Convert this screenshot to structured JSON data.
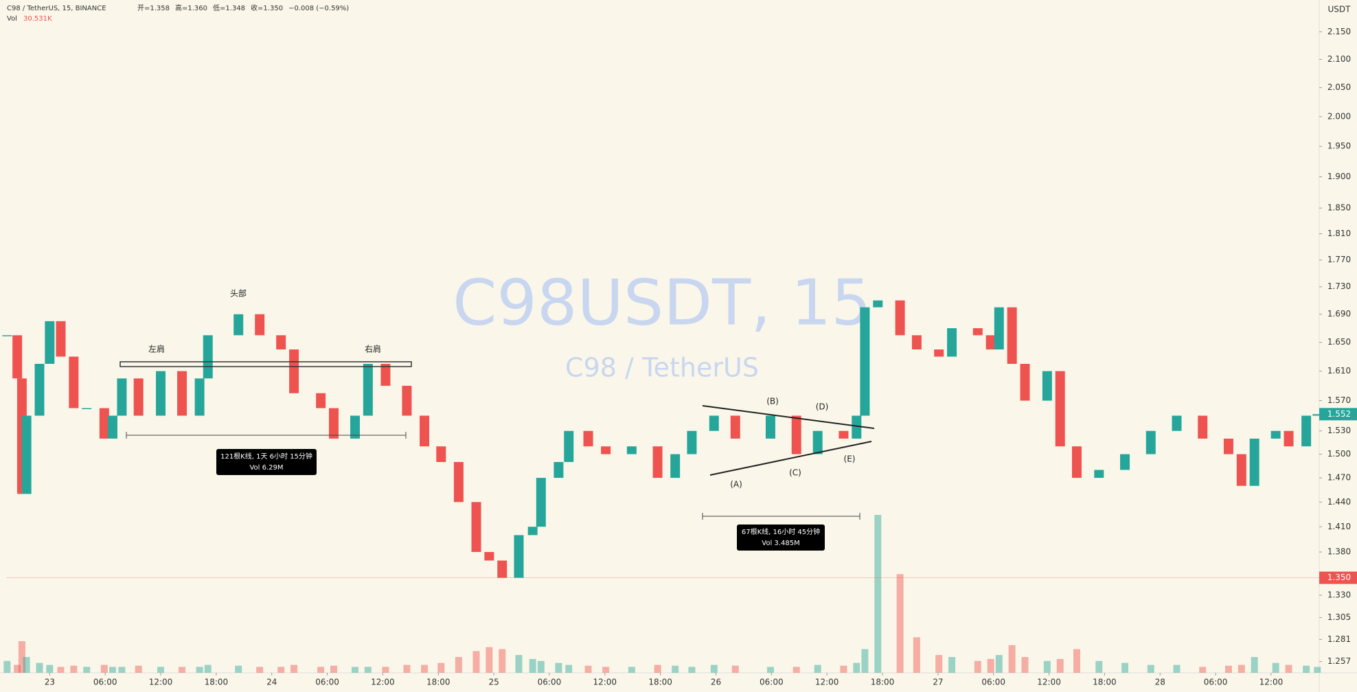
{
  "chart_data": {
    "type": "candlestick",
    "header": "C98 / TetherUS, 15, BINANCE",
    "ohlc_legend": [
      "开=1.358",
      "高=1.360",
      "低=1.348",
      "收=1.350",
      "−0.008 (−0.59%)"
    ],
    "volume_label": "Vol",
    "volume_value": "30.531K",
    "watermark": "C98USDT, 15",
    "watermark_subtitle": "C98 / TetherUS",
    "y_unit": "USDT",
    "log_scale": true,
    "grid": false,
    "up_color": "#26a69a",
    "down_color": "#ef5350",
    "xlim": [
      -4.7,
      137.2
    ],
    "xticks": [
      {
        "value": 0,
        "label": "23"
      },
      {
        "value": 6,
        "label": "06:00"
      },
      {
        "value": 12,
        "label": "12:00"
      },
      {
        "value": 18,
        "label": "18:00"
      },
      24,
      {
        "value": 30,
        "label": "06:00"
      },
      {
        "value": 36,
        "label": "12:00"
      },
      {
        "value": 42,
        "label": "18:00"
      },
      {
        "value": 48,
        "label": "25"
      },
      {
        "value": 54,
        "label": "06:00"
      },
      {
        "value": 60,
        "label": "12:00"
      },
      {
        "value": 66,
        "label": "18:00"
      },
      {
        "value": 72,
        "label": "26"
      },
      {
        "value": 78,
        "label": "06:00"
      },
      {
        "value": 84,
        "label": "12:00"
      },
      {
        "value": 90,
        "label": "18:00"
      },
      {
        "value": 96,
        "label": "27"
      },
      {
        "value": 102,
        "label": "06:00"
      },
      {
        "value": 108,
        "label": "12:00"
      },
      {
        "value": 114,
        "label": "18:00"
      },
      {
        "value": 120,
        "label": "28"
      },
      {
        "value": 126,
        "label": "06:00"
      },
      {
        "value": 132,
        "label": "12:00"
      }
    ],
    "ylim": [
      1.245,
      2.209
    ],
    "yticks": [
      {
        "value": 2.15,
        "label": "2.150"
      },
      {
        "value": 2.1,
        "label": "2.100"
      },
      {
        "value": 2.05,
        "label": "2.050"
      },
      {
        "value": 2.0,
        "label": "2.000"
      },
      {
        "value": 1.95,
        "label": "1.950"
      },
      {
        "value": 1.9,
        "label": "1.900"
      },
      {
        "value": 1.85,
        "label": "1.850"
      },
      {
        "value": 1.81,
        "label": "1.810"
      },
      {
        "value": 1.77,
        "label": "1.770"
      },
      {
        "value": 1.73,
        "label": "1.730"
      },
      {
        "value": 1.69,
        "label": "1.690"
      },
      {
        "value": 1.65,
        "label": "1.650"
      },
      {
        "value": 1.61,
        "label": "1.610"
      },
      {
        "value": 1.57,
        "label": "1.570"
      },
      {
        "value": 1.53,
        "label": "1.530"
      },
      {
        "value": 1.5,
        "label": "1.500"
      },
      {
        "value": 1.47,
        "label": "1.470"
      },
      {
        "value": 1.44,
        "label": "1.440"
      },
      {
        "value": 1.41,
        "label": "1.410"
      },
      {
        "value": 1.38,
        "label": "1.380"
      },
      {
        "value": 1.35,
        "label": "1.350"
      },
      {
        "value": 1.33,
        "label": "1.330"
      },
      1.305,
      1.281,
      1.257
    ],
    "last_price": 1.552,
    "marked_price": {
      "value": 1.35,
      "label": "1.350"
    },
    "x": [
      -4.6,
      -3.5,
      -3.0,
      -2.5,
      -1.1,
      0,
      1.2,
      2.6,
      4.0,
      5.9,
      6.8,
      7.8,
      9.6,
      12.0,
      14.3,
      16.2,
      17.1,
      20.4,
      22.7,
      25.0,
      26.4,
      29.3,
      30.7,
      33.0,
      34.4,
      36.3,
      38.6,
      40.5,
      42.3,
      44.2,
      46.1,
      47.5,
      48.9,
      50.7,
      52.2,
      53.1,
      55.0,
      56.1,
      58.2,
      60.1,
      62.9,
      65.7,
      67.6,
      69.4,
      71.8,
      74.1,
      77.9,
      80.7,
      83.0,
      85.8,
      87.2,
      88.1,
      89.5,
      91.9,
      93.7,
      96.1,
      97.5,
      100.3,
      101.7,
      102.6,
      104.0,
      105.4,
      107.8,
      109.2,
      111.0,
      113.4,
      116.2,
      119.0,
      121.8,
      124.6,
      127.4,
      128.8,
      130.2,
      132.5,
      133.9,
      135.8,
      137.0
    ],
    "close": [
      1.66,
      1.6,
      1.45,
      1.55,
      1.62,
      1.68,
      1.63,
      1.56,
      1.56,
      1.52,
      1.55,
      1.6,
      1.55,
      1.61,
      1.55,
      1.6,
      1.66,
      1.69,
      1.66,
      1.64,
      1.58,
      1.56,
      1.52,
      1.55,
      1.62,
      1.59,
      1.55,
      1.51,
      1.49,
      1.44,
      1.38,
      1.37,
      1.35,
      1.4,
      1.41,
      1.47,
      1.49,
      1.53,
      1.51,
      1.5,
      1.51,
      1.47,
      1.5,
      1.53,
      1.55,
      1.52,
      1.55,
      1.5,
      1.53,
      1.52,
      1.55,
      1.7,
      1.71,
      1.66,
      1.64,
      1.63,
      1.67,
      1.66,
      1.64,
      1.7,
      1.62,
      1.57,
      1.61,
      1.51,
      1.47,
      1.48,
      1.5,
      1.53,
      1.55,
      1.52,
      1.5,
      1.46,
      1.52,
      1.53,
      1.51,
      1.55,
      1.552
    ],
    "volume": [
      30,
      20,
      80,
      40,
      25,
      20,
      15,
      18,
      15,
      20,
      15,
      15,
      18,
      15,
      15,
      15,
      20,
      18,
      15,
      15,
      20,
      15,
      18,
      15,
      15,
      15,
      20,
      20,
      25,
      40,
      55,
      65,
      60,
      45,
      35,
      30,
      25,
      20,
      18,
      15,
      15,
      20,
      18,
      15,
      20,
      18,
      15,
      15,
      20,
      18,
      25,
      60,
      400,
      250,
      90,
      45,
      40,
      30,
      35,
      45,
      70,
      40,
      30,
      35,
      60,
      30,
      25,
      20,
      20,
      15,
      18,
      20,
      40,
      25,
      20,
      18,
      15
    ],
    "annotations": [
      "头部",
      "左肩",
      "右肩",
      "(A)",
      "(B)",
      "(C)",
      "(D)",
      "(E)"
    ],
    "measure_boxes": [
      [
        "121根K线, 1天 6小时 15分钟",
        "Vol 6.29M"
      ],
      [
        "67根K线, 16小时 45分钟",
        "Vol 3.485M"
      ]
    ]
  }
}
